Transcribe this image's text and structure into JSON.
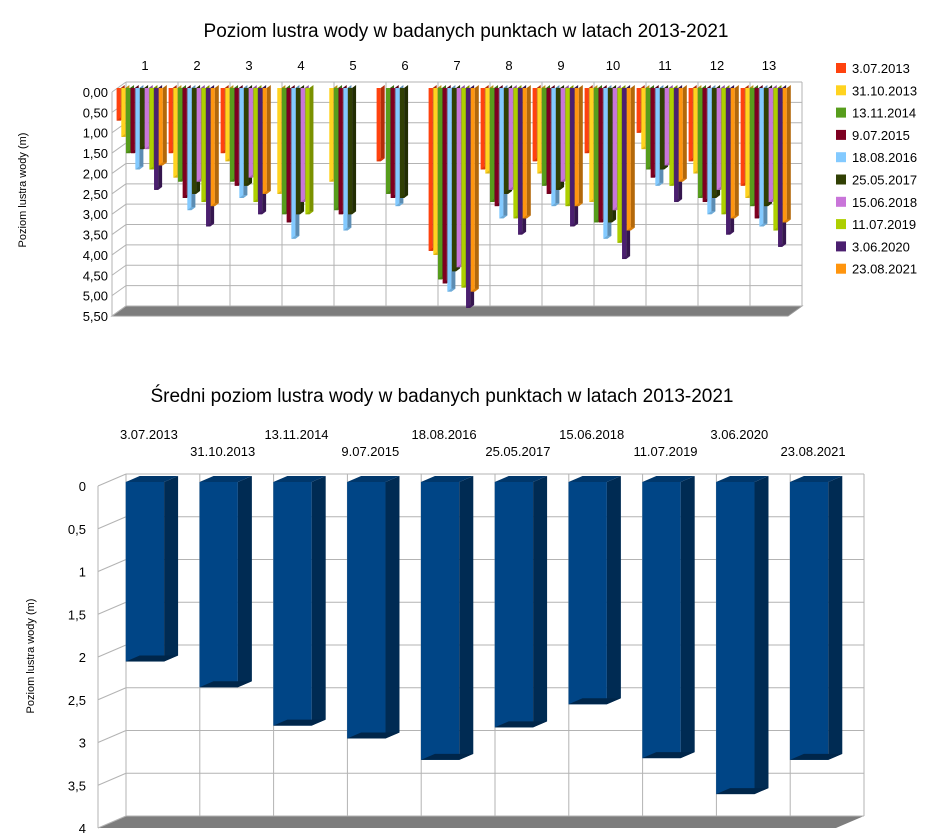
{
  "chart_data": [
    {
      "type": "bar",
      "title": "Poziom lustra wody w badanych punktach w latach 2013-2021",
      "ylabel": "Poziom lustra wody (m)",
      "xlabel": "",
      "ylim": [
        0,
        5.5
      ],
      "y_inverted": true,
      "yticks": [
        "0,00",
        "0,50",
        "1,00",
        "1,50",
        "2,00",
        "2,50",
        "3,00",
        "3,50",
        "4,00",
        "4,50",
        "5,00",
        "5,50"
      ],
      "categories": [
        "1",
        "2",
        "3",
        "4",
        "5",
        "6",
        "7",
        "8",
        "9",
        "10",
        "11",
        "12",
        "13"
      ],
      "legend_position": "right",
      "grid": true,
      "series": [
        {
          "name": "3.07.2013",
          "color": "#ff420e",
          "values": [
            0.8,
            1.6,
            1.6,
            null,
            null,
            1.8,
            4.0,
            2.0,
            1.8,
            1.6,
            1.1,
            1.8,
            2.4
          ]
        },
        {
          "name": "31.10.2013",
          "color": "#ffd320",
          "values": [
            1.2,
            2.2,
            1.8,
            2.6,
            2.3,
            null,
            4.1,
            2.1,
            2.1,
            2.8,
            1.5,
            2.1,
            2.7
          ]
        },
        {
          "name": "13.11.2014",
          "color": "#579d1c",
          "values": [
            1.6,
            2.3,
            2.3,
            3.1,
            3.0,
            2.6,
            4.7,
            2.8,
            2.4,
            3.3,
            2.0,
            2.7,
            2.9
          ]
        },
        {
          "name": "9.07.2015",
          "color": "#7e0021",
          "values": [
            1.6,
            2.7,
            2.4,
            3.3,
            3.1,
            2.7,
            4.8,
            2.9,
            2.6,
            3.3,
            2.2,
            2.8,
            3.2
          ]
        },
        {
          "name": "18.08.2016",
          "color": "#83caff",
          "values": [
            2.0,
            3.0,
            2.7,
            3.7,
            3.5,
            2.9,
            5.0,
            3.2,
            2.9,
            3.7,
            2.4,
            3.1,
            3.4
          ]
        },
        {
          "name": "25.05.2017",
          "color": "#314004",
          "values": [
            1.5,
            2.6,
            2.4,
            3.1,
            3.1,
            2.7,
            4.5,
            2.6,
            2.5,
            3.3,
            2.0,
            2.7,
            2.9
          ]
        },
        {
          "name": "15.06.2018",
          "color": "#c975d9",
          "values": [
            1.5,
            2.3,
            2.2,
            2.8,
            null,
            null,
            4.4,
            2.5,
            2.3,
            3.0,
            1.9,
            2.5,
            2.8
          ]
        },
        {
          "name": "11.07.2019",
          "color": "#aecf00",
          "values": [
            2.0,
            2.8,
            2.8,
            3.1,
            null,
            null,
            4.9,
            3.2,
            2.9,
            3.8,
            2.4,
            3.1,
            3.5
          ]
        },
        {
          "name": "3.06.2020",
          "color": "#4b1f6f",
          "values": [
            2.5,
            3.4,
            3.1,
            null,
            null,
            null,
            5.4,
            3.6,
            3.4,
            4.2,
            2.8,
            3.6,
            3.9
          ]
        },
        {
          "name": "23.08.2021",
          "color": "#ff950e",
          "values": [
            1.9,
            2.9,
            2.6,
            null,
            null,
            null,
            5.0,
            3.2,
            2.9,
            3.5,
            2.3,
            3.2,
            3.3
          ]
        }
      ]
    },
    {
      "type": "bar",
      "title": "Średni poziom lustra wody w badanych punktach w latach 2013-2021",
      "ylabel": "Poziom lustra wody (m)",
      "xlabel": "",
      "ylim": [
        0,
        4
      ],
      "y_inverted": true,
      "yticks": [
        "0",
        "0,5",
        "1",
        "1,5",
        "2",
        "2,5",
        "3",
        "3,5",
        "4"
      ],
      "categories": [
        "3.07.2013",
        "31.10.2013",
        "13.11.2014",
        "9.07.2015",
        "18.08.2016",
        "25.05.2017",
        "15.06.2018",
        "11.07.2019",
        "3.06.2020",
        "23.08.2021"
      ],
      "color": "#004586",
      "grid": true,
      "values": [
        2.1,
        2.4,
        2.85,
        3.0,
        3.25,
        2.87,
        2.6,
        3.23,
        3.65,
        3.25
      ]
    }
  ]
}
